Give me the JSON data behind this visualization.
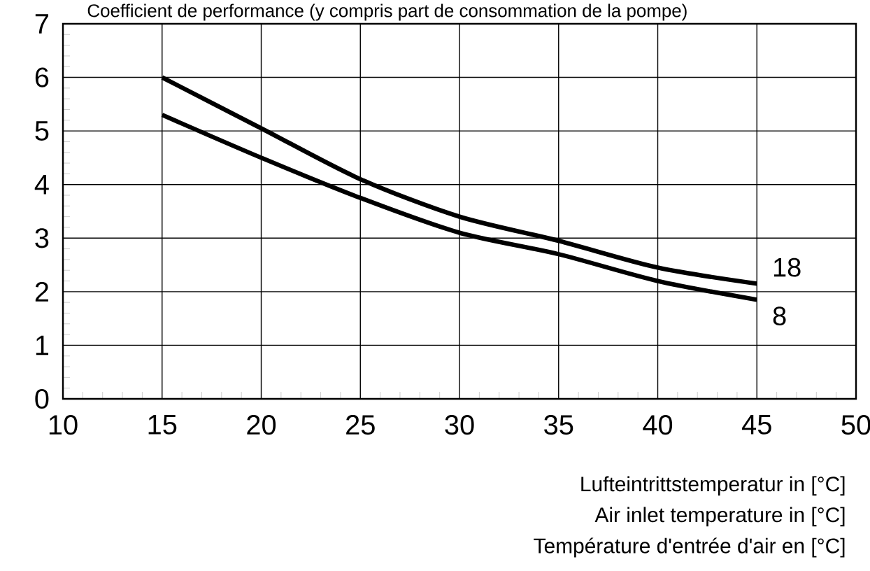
{
  "chart_data": {
    "type": "line",
    "title": "Coefficient de performance (y compris part de consommation de la pompe)",
    "xlabel": "Lufteintrittstemperatur in [°C]",
    "annotations": [
      "Air inlet temperature in [°C]",
      "Température d'entrée d'air en [°C]"
    ],
    "x": [
      15,
      20,
      25,
      30,
      35,
      40,
      45
    ],
    "series": [
      {
        "name": "18",
        "color": "#000000",
        "values": [
          6.0,
          5.05,
          4.1,
          3.4,
          2.95,
          2.45,
          2.15
        ]
      },
      {
        "name": "8",
        "color": "#000000",
        "values": [
          5.3,
          4.5,
          3.75,
          3.1,
          2.7,
          2.2,
          1.85
        ]
      }
    ],
    "xlim": [
      10,
      50
    ],
    "xticks": [
      10,
      15,
      20,
      25,
      30,
      35,
      40,
      45,
      50
    ],
    "ylim": [
      0,
      7
    ],
    "yticks": [
      0,
      1,
      2,
      3,
      4,
      5,
      6,
      7
    ],
    "grid": true,
    "marker": "none",
    "line_style": "solid"
  }
}
